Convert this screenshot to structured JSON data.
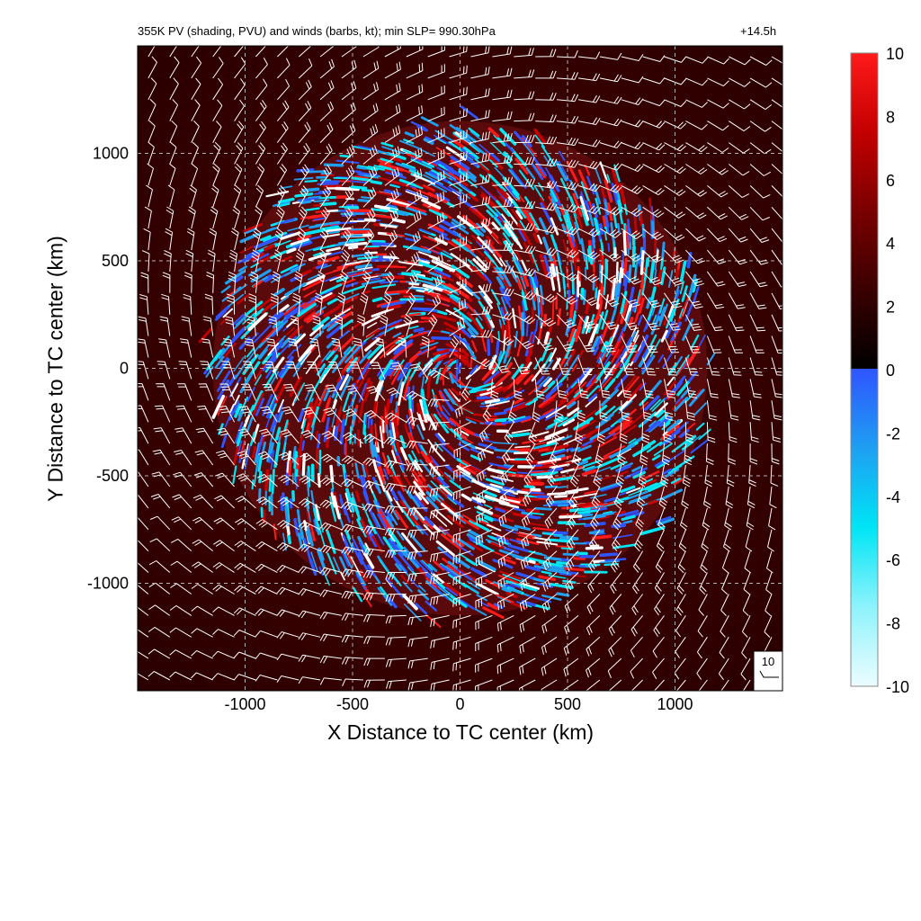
{
  "header": {
    "title": "355K PV (shading, PVU) and winds (barbs, kt); min SLP= 990.30hPa",
    "time_label": "+14.5h"
  },
  "reference_barb": {
    "label": "10"
  },
  "colors": {
    "background_low_pv": "#3a0000",
    "positive_pv": "#e0151b",
    "negative_pv": "#3fa8ff",
    "barb": "#ffffff",
    "grid": "#b4b4b4"
  },
  "chart_data": {
    "type": "heatmap",
    "title": "355K PV (shading, PVU) and winds (barbs, kt); min SLP= 990.30hPa",
    "annotation": "+14.5h",
    "xlabel": "X Distance to TC center (km)",
    "ylabel": "Y Distance to TC center (km)",
    "xlim": [
      -1500,
      1500
    ],
    "ylim": [
      -1500,
      1500
    ],
    "xticks": [
      -1000,
      -500,
      0,
      500,
      1000
    ],
    "yticks": [
      -1000,
      -500,
      0,
      500,
      1000
    ],
    "grid": true,
    "field": "PV",
    "units": "PVU",
    "colorbar": {
      "min": -10,
      "max": 10,
      "ticks": [
        10,
        8,
        6,
        4,
        2,
        0,
        -2,
        -4,
        -6,
        -8,
        -10
      ],
      "positive_stops": [
        "#000000",
        "#3a0000",
        "#7a0000",
        "#c40000",
        "#ff1a1a"
      ],
      "negative_stops": [
        "#2f55ff",
        "#1e9ff2",
        "#00e5f5",
        "#8ef3fc",
        "#ecfdff"
      ]
    },
    "storm_extent_km": 1150,
    "barbs": {
      "spacing_km": 100,
      "reference_speed_kt": 10,
      "rotation": "cyclonic"
    }
  }
}
